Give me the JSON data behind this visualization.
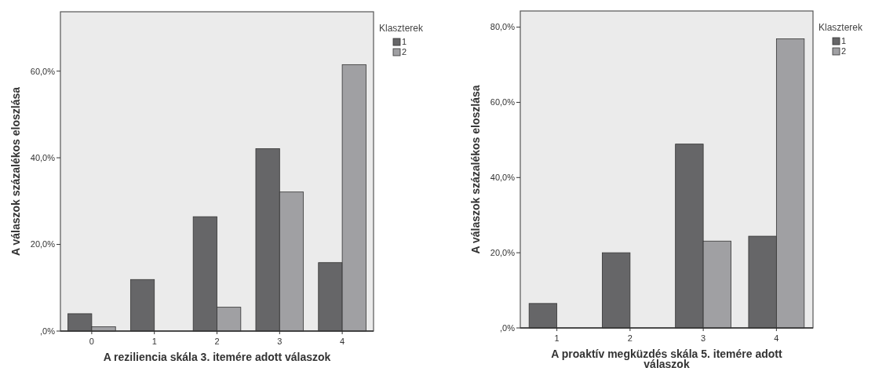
{
  "chart_data": [
    {
      "type": "bar",
      "xlabel": "A reziliencia skála 3. itemére adott válaszok",
      "ylabel": "A válaszok százalékos eloszlása",
      "legend_title": "Klaszterek",
      "legend": "top right",
      "grid": false,
      "categories": [
        "0",
        "1",
        "2",
        "3",
        "4"
      ],
      "ylim": [
        0,
        73.7
      ],
      "yticks": [
        {
          "value": 0,
          "label": ",0%"
        },
        {
          "value": 20,
          "label": "20,0%"
        },
        {
          "value": 40,
          "label": "40,0%"
        },
        {
          "value": 60,
          "label": "60,0%"
        }
      ],
      "series": [
        {
          "name": "1",
          "color": "#666668",
          "values": [
            4.0,
            11.9,
            26.4,
            42.1,
            15.8
          ]
        },
        {
          "name": "2",
          "color": "#a0a0a3",
          "values": [
            1.0,
            0,
            5.5,
            32.1,
            61.5
          ]
        }
      ]
    },
    {
      "type": "bar",
      "xlabel": "A proaktív megküzdés skála 5. itemére adott válaszok",
      "ylabel": "A válaszok százalékos eloszlása",
      "legend_title": "Klaszterek",
      "legend": "top right",
      "grid": false,
      "categories": [
        "1",
        "2",
        "3",
        "4"
      ],
      "ylim": [
        0,
        84.3
      ],
      "yticks": [
        {
          "value": 0,
          "label": ",0%"
        },
        {
          "value": 20,
          "label": "20,0%"
        },
        {
          "value": 40,
          "label": "40,0%"
        },
        {
          "value": 60,
          "label": "60,0%"
        },
        {
          "value": 80,
          "label": "80,0%"
        }
      ],
      "series": [
        {
          "name": "1",
          "color": "#666668",
          "values": [
            6.5,
            20.0,
            48.9,
            24.4
          ]
        },
        {
          "name": "2",
          "color": "#a0a0a3",
          "values": [
            0,
            0,
            23.1,
            76.9
          ]
        }
      ]
    }
  ]
}
